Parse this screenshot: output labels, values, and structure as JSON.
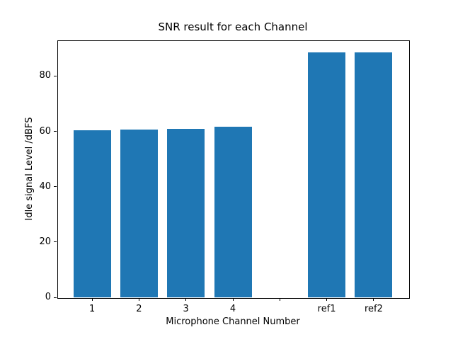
{
  "chart_data": {
    "type": "bar",
    "title": "SNR result for each Channel",
    "xlabel": "Microphone Channel Number",
    "ylabel": "Idle signal Level /dBFS",
    "categories": [
      "1",
      "2",
      "3",
      "4",
      "ref1",
      "ref2"
    ],
    "values": [
      60.3,
      60.6,
      60.8,
      61.7,
      88.5,
      88.5
    ],
    "x_positions": [
      1,
      2,
      3,
      4,
      6,
      7
    ],
    "xticks": {
      "positions": [
        1,
        2,
        3,
        4,
        5,
        6,
        7
      ],
      "labels": [
        "1",
        "2",
        "3",
        "4",
        "",
        "ref1",
        "ref2"
      ]
    },
    "yticks": [
      0,
      20,
      40,
      60,
      80
    ],
    "xlim": [
      0.26,
      7.74
    ],
    "ylim": [
      0,
      92.9
    ],
    "bar_width": 0.8,
    "bar_color": "#1f77b4",
    "grid": false,
    "legend": null
  }
}
